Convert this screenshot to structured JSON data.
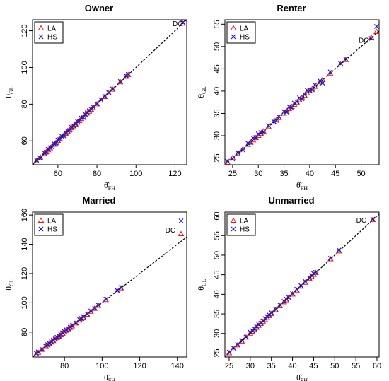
{
  "chart_data": [
    {
      "type": "scatter",
      "title": "Owner",
      "xlabel": "θ̂FH",
      "ylabel": "θGL",
      "xlim": [
        47,
        126
      ],
      "ylim": [
        47,
        126
      ],
      "xticks": [
        "60",
        "80",
        "100",
        "120"
      ],
      "yticks": [
        "60",
        "80",
        "100",
        "120"
      ],
      "legend_position": "top-left",
      "reference_line": "y = x (dashed)",
      "annotation": {
        "text": "DC",
        "x": 124,
        "y": 124
      },
      "series": [
        {
          "name": "LA",
          "marker": "triangle",
          "color": "#e41a1c",
          "x": [
            49,
            51,
            53,
            54,
            55,
            56,
            57,
            58,
            59,
            60,
            61,
            62,
            63,
            64,
            65,
            66,
            67,
            68,
            69,
            70,
            71,
            72,
            73,
            74,
            75,
            76,
            77,
            78,
            80,
            82,
            84,
            86,
            88,
            92,
            95,
            96,
            124
          ],
          "y": [
            49,
            51,
            53,
            54,
            55,
            56,
            57,
            58,
            59,
            60,
            61,
            62,
            63,
            64,
            65,
            66,
            67,
            68,
            69,
            70,
            71,
            72,
            73,
            74,
            75,
            76,
            77,
            78,
            80,
            82,
            84,
            86,
            88,
            92,
            95,
            96,
            124
          ]
        },
        {
          "name": "HS",
          "marker": "cross",
          "color": "#1a1acc",
          "x": [
            49,
            51,
            53,
            54,
            55,
            56,
            57,
            58,
            59,
            60,
            61,
            62,
            63,
            64,
            65,
            66,
            67,
            68,
            69,
            70,
            71,
            72,
            73,
            74,
            75,
            76,
            77,
            78,
            80,
            82,
            84,
            86,
            88,
            92,
            95,
            96,
            124
          ],
          "y": [
            49.5,
            50.5,
            53.5,
            53.8,
            55.4,
            56.3,
            56.6,
            58.5,
            58.7,
            60.4,
            60.8,
            62.5,
            62.7,
            64.3,
            65.5,
            65.7,
            67.4,
            68.2,
            69.3,
            70.6,
            70.8,
            72.4,
            72.7,
            74.5,
            75.3,
            76.4,
            77.3,
            78.5,
            80.2,
            82.5,
            84.4,
            86.3,
            88.3,
            92.4,
            95.4,
            96.2,
            124.5
          ]
        }
      ]
    },
    {
      "type": "scatter",
      "title": "Renter",
      "xlabel": "θ̂FH",
      "ylabel": "θGL",
      "xlim": [
        23.5,
        53.5
      ],
      "ylim": [
        23.5,
        56
      ],
      "xticks": [
        "25",
        "30",
        "35",
        "40",
        "45",
        "50"
      ],
      "yticks": [
        "25",
        "30",
        "35",
        "40",
        "45",
        "50",
        "55"
      ],
      "legend_position": "top-left",
      "reference_line": "y = x (dashed)",
      "annotation": {
        "text": "DC",
        "x": 51.5,
        "y": 51.5
      },
      "series": [
        {
          "name": "LA",
          "marker": "triangle",
          "color": "#e41a1c",
          "x": [
            24,
            25,
            26,
            27,
            28,
            28.5,
            29,
            29.5,
            30,
            30.5,
            31,
            32,
            33,
            33.5,
            34,
            35,
            35.5,
            36,
            36.5,
            37,
            37.5,
            38,
            38.5,
            39,
            39.5,
            40,
            40.5,
            41,
            42,
            42.5,
            44,
            46,
            47,
            52,
            53
          ],
          "y": [
            24,
            25,
            26,
            27,
            28,
            28.5,
            29,
            29.5,
            30,
            30.5,
            31,
            32,
            33,
            33.5,
            34,
            35,
            35.5,
            36,
            36.5,
            37,
            37.5,
            38,
            38.5,
            39,
            39.5,
            40,
            40.5,
            41,
            42,
            42.5,
            44,
            46,
            47,
            52,
            53.3
          ]
        },
        {
          "name": "HS",
          "marker": "cross",
          "color": "#1a1acc",
          "x": [
            24,
            25,
            26,
            27,
            28,
            28.5,
            29,
            29.5,
            30,
            30.5,
            31,
            32,
            33,
            33.5,
            34,
            35,
            35.5,
            36,
            36.5,
            37,
            37.5,
            38,
            38.5,
            39,
            39.5,
            40,
            40.5,
            41,
            42,
            42.5,
            44,
            46,
            47,
            52,
            53
          ],
          "y": [
            24.3,
            24.8,
            26.2,
            26.8,
            28.3,
            28.4,
            29.5,
            29.6,
            30.4,
            30.7,
            30.8,
            32.3,
            33.2,
            33.4,
            34.3,
            35.4,
            35.3,
            36.5,
            36.2,
            37.3,
            37.6,
            38.5,
            38.3,
            39.2,
            40.2,
            40.1,
            40.3,
            41.4,
            42.3,
            41.8,
            44.3,
            46.2,
            47.2,
            51.8,
            54.5
          ]
        }
      ]
    },
    {
      "type": "scatter",
      "title": "Married",
      "xlabel": "θ̂FH",
      "ylabel": "θGL",
      "xlim": [
        63,
        145
      ],
      "ylim": [
        63,
        162
      ],
      "xticks": [
        "80",
        "100",
        "120",
        "140"
      ],
      "yticks": [
        "80",
        "100",
        "120",
        "140",
        "160"
      ],
      "legend_position": "top-left",
      "reference_line": "y = x (dashed)",
      "annotation": {
        "text": "DC",
        "x": 139,
        "y": 150
      },
      "series": [
        {
          "name": "LA",
          "marker": "triangle",
          "color": "#e41a1c",
          "x": [
            65,
            66,
            68,
            70,
            71,
            72,
            73,
            74,
            75,
            76,
            77,
            78,
            79,
            80,
            81,
            82,
            83,
            84,
            86,
            88,
            89,
            90,
            92,
            94,
            96,
            98,
            102,
            108,
            110,
            142
          ],
          "y": [
            65,
            66,
            68,
            70,
            71,
            72,
            73,
            74,
            75,
            76,
            77,
            78,
            79,
            80,
            81,
            82,
            83,
            84,
            86,
            88,
            89,
            90,
            92,
            94,
            96,
            98,
            102,
            108,
            110,
            147
          ]
        },
        {
          "name": "HS",
          "marker": "cross",
          "color": "#1a1acc",
          "x": [
            65,
            66,
            68,
            70,
            71,
            72,
            73,
            74,
            75,
            76,
            77,
            78,
            79,
            80,
            81,
            82,
            83,
            84,
            86,
            88,
            89,
            90,
            92,
            94,
            96,
            98,
            102,
            108,
            110,
            142
          ],
          "y": [
            65.5,
            66.5,
            68.3,
            70.4,
            71.5,
            72.3,
            73.4,
            74.5,
            75.3,
            76.5,
            77.3,
            78.4,
            79.5,
            80.3,
            81.5,
            82.4,
            83.3,
            84.5,
            86.4,
            88.5,
            89.3,
            90.6,
            92.4,
            94.5,
            96.3,
            98.4,
            102.5,
            108.5,
            110.4,
            156
          ]
        }
      ]
    },
    {
      "type": "scatter",
      "title": "Unmarried",
      "xlabel": "θ̂FH",
      "ylabel": "θGL",
      "xlim": [
        24,
        60.5
      ],
      "ylim": [
        24,
        61
      ],
      "xticks": [
        "25",
        "30",
        "35",
        "40",
        "45",
        "50",
        "55",
        "60"
      ],
      "yticks": [
        "25",
        "30",
        "35",
        "40",
        "45",
        "50",
        "55",
        "60"
      ],
      "legend_position": "top-left",
      "reference_line": "y = x (dashed)",
      "annotation": {
        "text": "DC",
        "x": 57.5,
        "y": 59
      },
      "series": [
        {
          "name": "LA",
          "marker": "triangle",
          "color": "#e41a1c",
          "x": [
            25,
            26,
            27,
            28,
            29,
            30,
            30.5,
            31,
            31.5,
            32,
            32.5,
            33,
            33.5,
            34,
            34.5,
            35,
            36,
            37,
            38,
            38.5,
            39,
            40,
            41,
            42,
            43,
            44,
            44.5,
            45,
            45.5,
            49,
            51,
            59
          ],
          "y": [
            25,
            26,
            27,
            28,
            29,
            30,
            30.5,
            31,
            31.5,
            32,
            32.5,
            33,
            33.5,
            34,
            34.5,
            35,
            36,
            37,
            38,
            38.5,
            39,
            40,
            41,
            42,
            43,
            44,
            44.5,
            45,
            45.5,
            49,
            51,
            59
          ]
        },
        {
          "name": "HS",
          "marker": "cross",
          "color": "#1a1acc",
          "x": [
            25,
            26,
            27,
            28,
            29,
            30,
            30.5,
            31,
            31.5,
            32,
            32.5,
            33,
            33.5,
            34,
            34.5,
            35,
            36,
            37,
            38,
            38.5,
            39,
            40,
            41,
            42,
            43,
            44,
            44.5,
            45,
            45.5,
            49,
            51,
            59
          ],
          "y": [
            25.2,
            26.3,
            27.2,
            28.3,
            29.1,
            30.3,
            30.7,
            31.2,
            31.8,
            32.3,
            32.6,
            33.2,
            33.8,
            34.3,
            34.7,
            35.3,
            36.2,
            37.3,
            38.2,
            38.8,
            39.3,
            40.2,
            41.3,
            42.2,
            43.3,
            44.2,
            44.8,
            45.3,
            45.6,
            49.2,
            51.3,
            59.2
          ]
        }
      ]
    }
  ]
}
